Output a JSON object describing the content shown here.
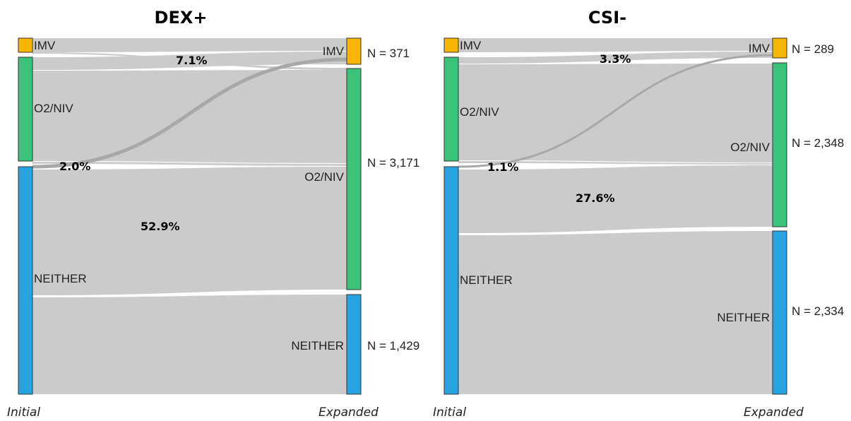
{
  "colors": {
    "imv": "#f7b500",
    "o2niv": "#3cc37b",
    "neither": "#27a4e0",
    "flow": "#cbcbcb",
    "highlight": "#a8a8a8"
  },
  "panels": [
    {
      "title": "DEX+",
      "left_axis": "Initial",
      "right_axis": "Expanded",
      "left_nodes": [
        "IMV",
        "O2/NIV",
        "NEITHER"
      ],
      "right_nodes": [
        "IMV",
        "O2/NIV",
        "NEITHER"
      ],
      "right_counts": [
        "N = 371",
        "N = 3,171",
        "N = 1,429"
      ],
      "percentages": [
        "7.1%",
        "2.0%",
        "52.9%"
      ]
    },
    {
      "title": "CSI-",
      "left_axis": "Initial",
      "right_axis": "Expanded",
      "left_nodes": [
        "IMV",
        "O2/NIV",
        "NEITHER"
      ],
      "right_nodes": [
        "IMV",
        "O2/NIV",
        "NEITHER"
      ],
      "right_counts": [
        "N = 289",
        "N = 2,348",
        "N = 2,334"
      ],
      "percentages": [
        "3.3%",
        "1.1%",
        "27.6%"
      ]
    }
  ]
}
